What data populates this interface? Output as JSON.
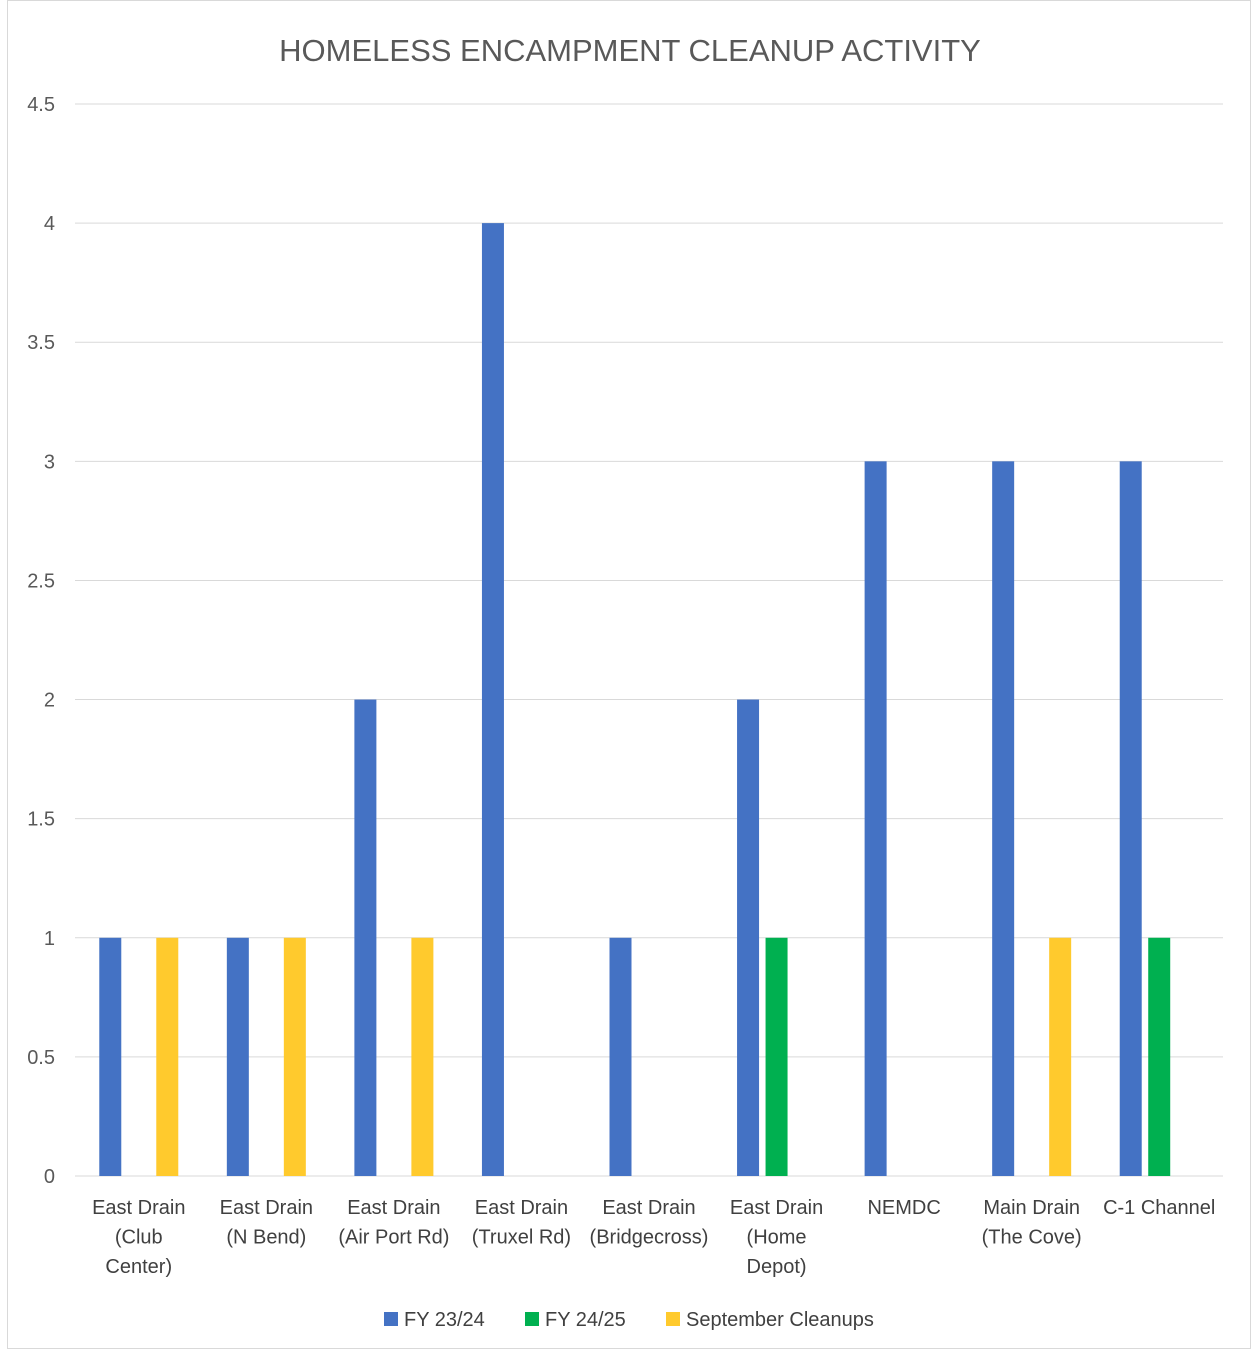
{
  "chart_data": {
    "type": "bar",
    "title": "HOMELESS ENCAMPMENT CLEANUP ACTIVITY",
    "xlabel": "",
    "ylabel": "",
    "ylim": [
      0,
      4.5
    ],
    "ytick_step": 0.5,
    "yticks": [
      "0",
      "0.5",
      "1",
      "1.5",
      "2",
      "2.5",
      "3",
      "3.5",
      "4",
      "4.5"
    ],
    "grid": true,
    "legend_position": "bottom",
    "categories": [
      [
        "East Drain",
        "(Club",
        "Center)"
      ],
      [
        "East Drain",
        "(N Bend)"
      ],
      [
        "East Drain",
        "(Air Port Rd)"
      ],
      [
        "East Drain",
        "(Truxel Rd)"
      ],
      [
        "East Drain",
        "(Bridgecross)"
      ],
      [
        "East Drain",
        "(Home",
        "Depot)"
      ],
      [
        "NEMDC"
      ],
      [
        "Main Drain",
        "(The Cove)"
      ],
      [
        "C-1 Channel"
      ]
    ],
    "series": [
      {
        "name": "FY 23/24",
        "color": "#4472C4",
        "values": [
          1,
          1,
          2,
          4,
          1,
          2,
          3,
          3,
          3
        ]
      },
      {
        "name": "FY 24/25",
        "color": "#00B050",
        "values": [
          0,
          0,
          0,
          0,
          0,
          1,
          0,
          0,
          1
        ]
      },
      {
        "name": "September Cleanups",
        "color": "#FFCA2D",
        "values": [
          1,
          1,
          1,
          0,
          0,
          0,
          0,
          1,
          0
        ]
      }
    ]
  }
}
